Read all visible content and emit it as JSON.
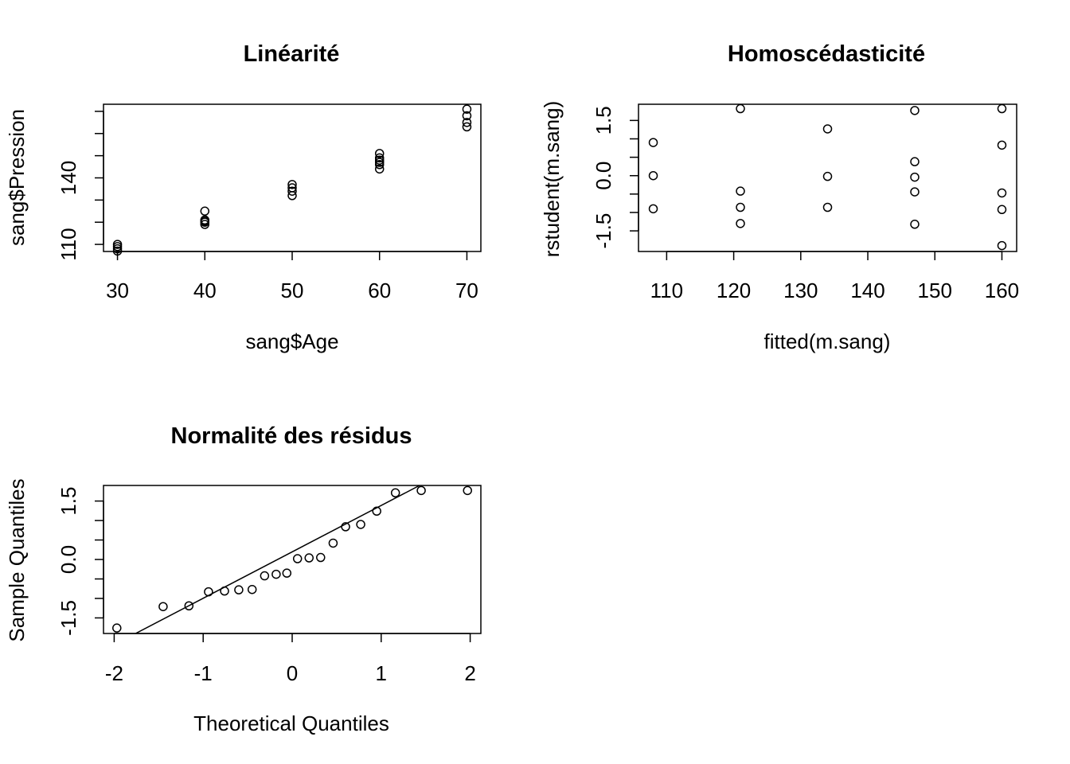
{
  "chart_data": [
    {
      "type": "scatter",
      "title": "Linéarité",
      "xlabel": "sang$Age",
      "ylabel": "sang$Pression",
      "xlim": [
        28.4,
        71.6
      ],
      "ylim": [
        106.8,
        173.2
      ],
      "x_ticks": [
        "30",
        "40",
        "50",
        "60",
        "70"
      ],
      "x_tick_values": [
        30,
        40,
        50,
        60,
        70
      ],
      "y_ticks": [
        "110",
        "140"
      ],
      "y_tick_values": [
        110,
        140
      ],
      "y_minor_ticks": [
        110,
        120,
        130,
        140,
        150,
        160,
        170
      ],
      "grid": false,
      "points": [
        {
          "x": 30,
          "y": 110
        },
        {
          "x": 30,
          "y": 108
        },
        {
          "x": 30,
          "y": 107
        },
        {
          "x": 30,
          "y": 109
        },
        {
          "x": 40,
          "y": 125
        },
        {
          "x": 40,
          "y": 121
        },
        {
          "x": 40,
          "y": 120
        },
        {
          "x": 40,
          "y": 119
        },
        {
          "x": 40,
          "y": 120.5
        },
        {
          "x": 50,
          "y": 137
        },
        {
          "x": 50,
          "y": 134
        },
        {
          "x": 50,
          "y": 132
        },
        {
          "x": 50,
          "y": 135.5
        },
        {
          "x": 60,
          "y": 151
        },
        {
          "x": 60,
          "y": 148
        },
        {
          "x": 60,
          "y": 146
        },
        {
          "x": 60,
          "y": 144
        },
        {
          "x": 60,
          "y": 147
        },
        {
          "x": 60,
          "y": 149
        },
        {
          "x": 70,
          "y": 171
        },
        {
          "x": 70,
          "y": 168
        },
        {
          "x": 70,
          "y": 165
        },
        {
          "x": 70,
          "y": 163
        }
      ]
    },
    {
      "type": "scatter",
      "title": "Homoscédasticité",
      "xlabel": "fitted(m.sang)",
      "ylabel": "rstudent(m.sang)",
      "xlim": [
        105.8,
        162.2
      ],
      "ylim": [
        -2.06,
        1.94
      ],
      "x_ticks": [
        "110",
        "120",
        "130",
        "140",
        "150",
        "160"
      ],
      "x_tick_values": [
        110,
        120,
        130,
        140,
        150,
        160
      ],
      "y_ticks": [
        "-1.5",
        "0.0",
        "1.5"
      ],
      "y_tick_values": [
        -1.5,
        0.0,
        1.5
      ],
      "y_minor_ticks": [
        -1.5,
        -1.0,
        -0.5,
        0.0,
        0.5,
        1.0,
        1.5
      ],
      "grid": false,
      "points": [
        {
          "x": 108,
          "y": 0.9
        },
        {
          "x": 108,
          "y": 0.0
        },
        {
          "x": 108,
          "y": -0.9
        },
        {
          "x": 121,
          "y": 1.82
        },
        {
          "x": 121,
          "y": -0.42
        },
        {
          "x": 121,
          "y": -0.86
        },
        {
          "x": 121,
          "y": -1.3
        },
        {
          "x": 134,
          "y": 1.27
        },
        {
          "x": 134,
          "y": -0.02
        },
        {
          "x": 134,
          "y": -0.86
        },
        {
          "x": 147,
          "y": 1.77
        },
        {
          "x": 147,
          "y": 0.38
        },
        {
          "x": 147,
          "y": -0.04
        },
        {
          "x": 147,
          "y": -0.44
        },
        {
          "x": 147,
          "y": -1.32
        },
        {
          "x": 160,
          "y": 1.82
        },
        {
          "x": 160,
          "y": 0.83
        },
        {
          "x": 160,
          "y": -0.47
        },
        {
          "x": 160,
          "y": -0.92
        },
        {
          "x": 160,
          "y": -1.9
        }
      ]
    },
    {
      "type": "scatter",
      "title": "Normalité des résidus",
      "xlabel": "Theoretical Quantiles",
      "ylabel": "Sample Quantiles",
      "xlim": [
        -2.12,
        2.12
      ],
      "ylim": [
        -1.9,
        1.9
      ],
      "x_ticks": [
        "-2",
        "-1",
        "0",
        "1",
        "2"
      ],
      "x_tick_values": [
        -2,
        -1,
        0,
        1,
        2
      ],
      "y_ticks": [
        "-1.5",
        "0.0",
        "1.5"
      ],
      "y_tick_values": [
        -1.5,
        0.0,
        1.5
      ],
      "y_minor_ticks": [
        -1.5,
        -1.0,
        -0.5,
        0.0,
        0.5,
        1.0,
        1.5
      ],
      "grid": false,
      "qq_line": {
        "x1": -2.12,
        "y1": -2.33,
        "x2": 2.12,
        "y2": 2.72
      },
      "points": [
        {
          "x": -1.97,
          "y": -1.76
        },
        {
          "x": -1.45,
          "y": -1.21
        },
        {
          "x": -1.16,
          "y": -1.19
        },
        {
          "x": -0.94,
          "y": -0.83
        },
        {
          "x": -0.76,
          "y": -0.81
        },
        {
          "x": -0.6,
          "y": -0.78
        },
        {
          "x": -0.45,
          "y": -0.77
        },
        {
          "x": -0.31,
          "y": -0.42
        },
        {
          "x": -0.18,
          "y": -0.38
        },
        {
          "x": -0.06,
          "y": -0.35
        },
        {
          "x": 0.06,
          "y": 0.02
        },
        {
          "x": 0.19,
          "y": 0.04
        },
        {
          "x": 0.32,
          "y": 0.05
        },
        {
          "x": 0.46,
          "y": 0.42
        },
        {
          "x": 0.6,
          "y": 0.84
        },
        {
          "x": 0.77,
          "y": 0.9
        },
        {
          "x": 0.95,
          "y": 1.24
        },
        {
          "x": 1.16,
          "y": 1.71
        },
        {
          "x": 1.45,
          "y": 1.77
        },
        {
          "x": 1.97,
          "y": 1.77
        }
      ]
    }
  ]
}
